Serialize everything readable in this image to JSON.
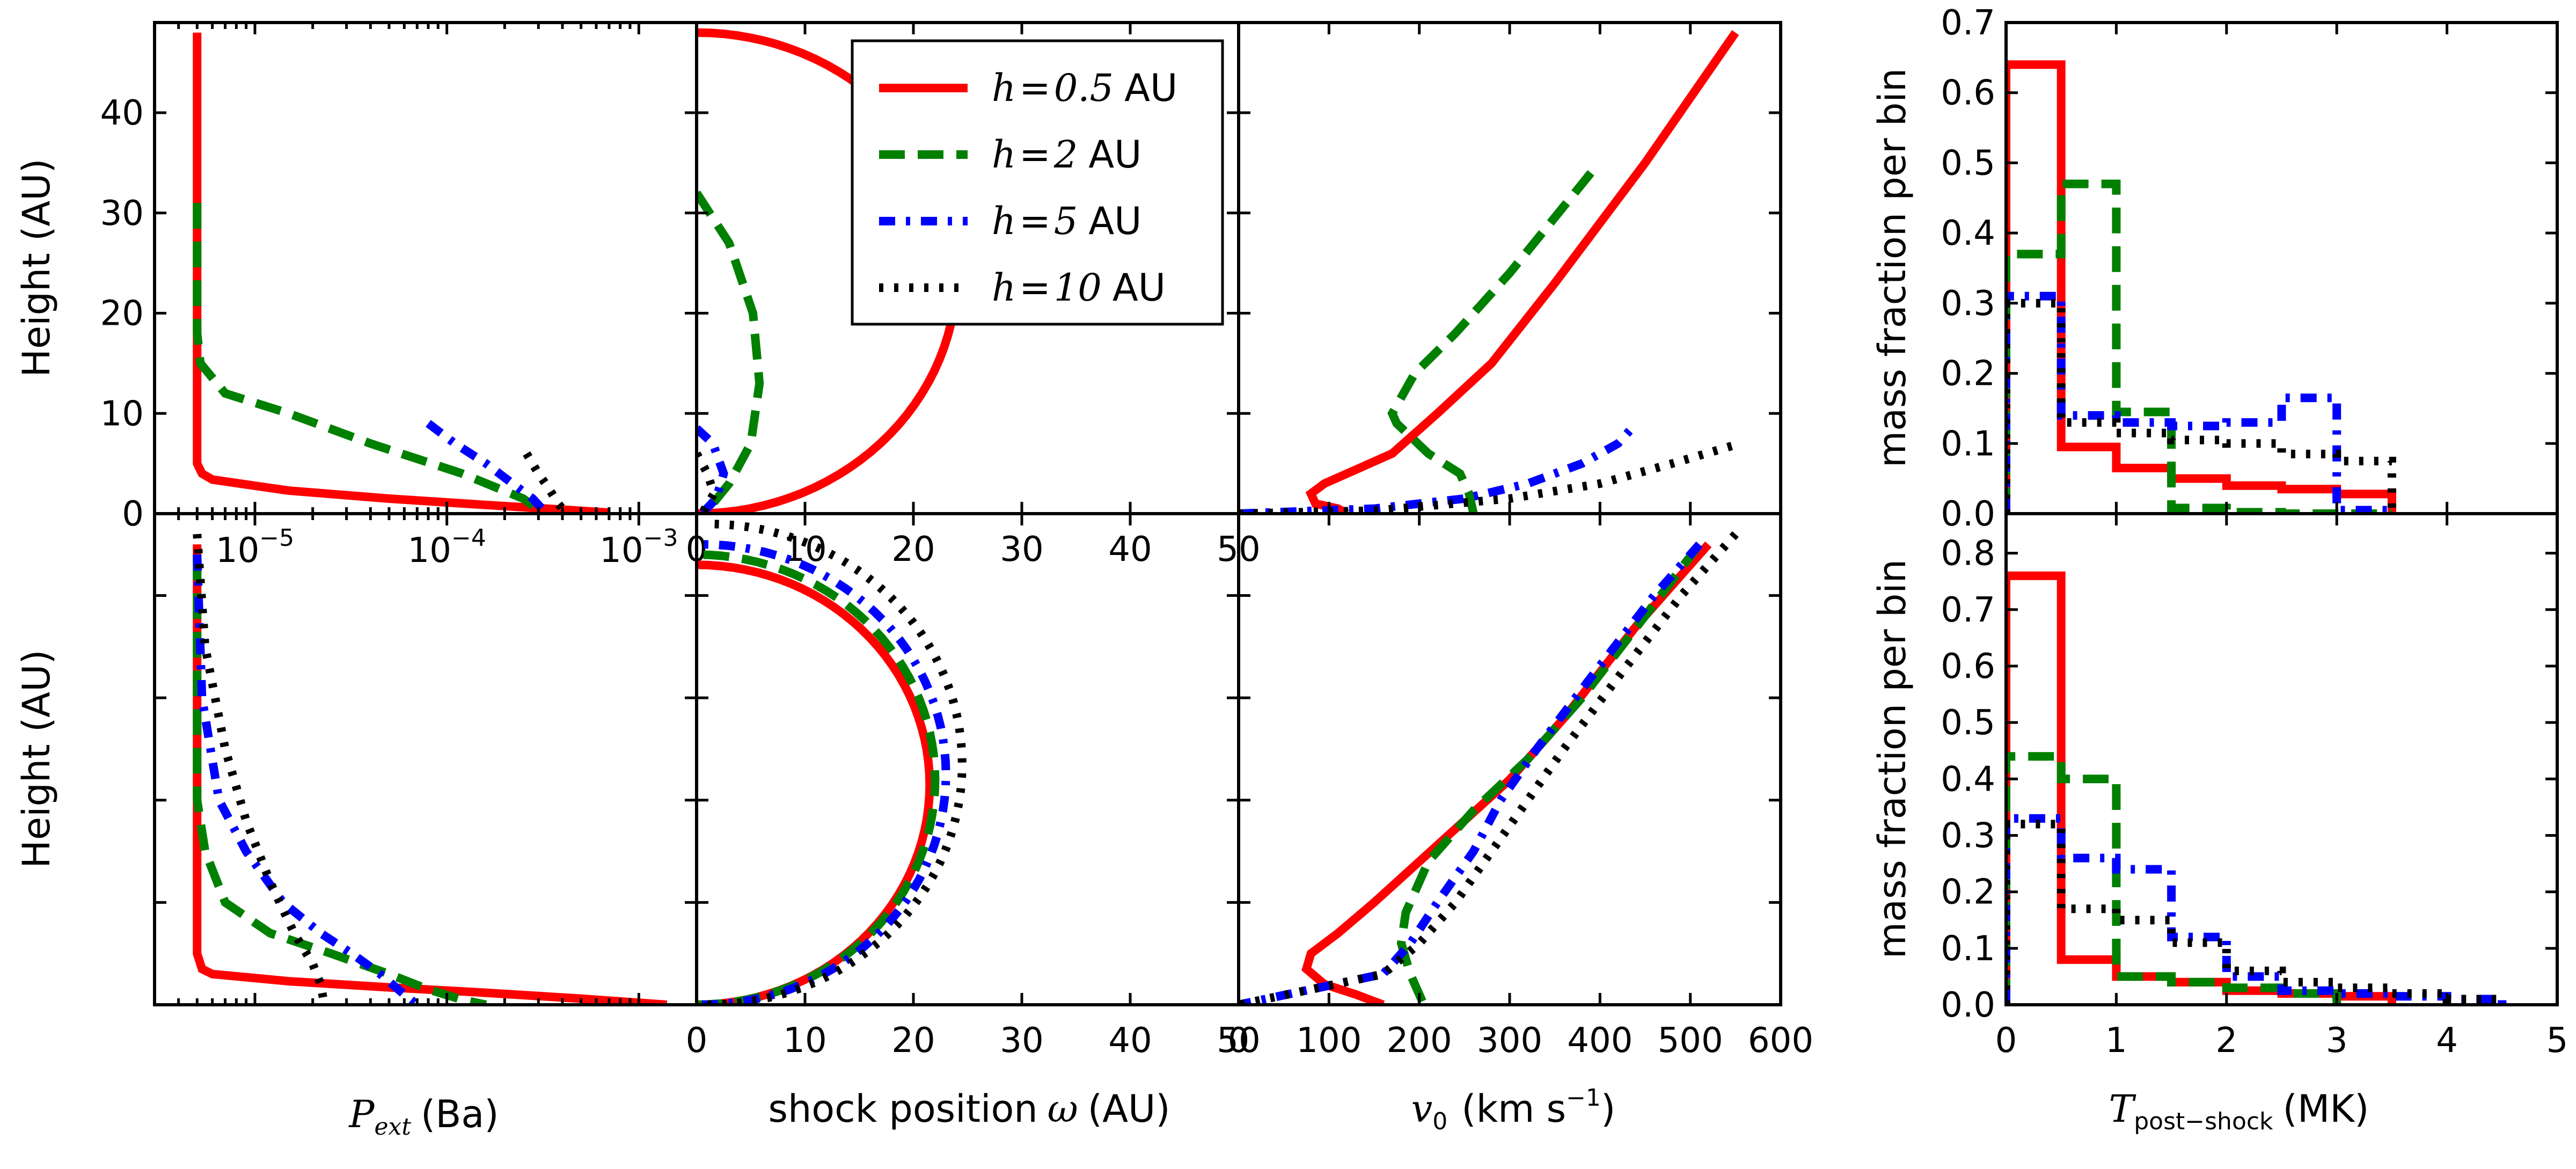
{
  "chart_data": [
    {
      "type": "line",
      "panel": "top-left",
      "xlabel_symbol": "P",
      "xlabel_sub": "ext",
      "xlabel_unit": "(Ba)",
      "ylabel": "Height (AU)",
      "xscale": "log",
      "xlim": [
        3e-06,
        0.002
      ],
      "ylim": [
        0,
        49
      ],
      "xtick_labels": [
        {
          "v": 1e-05,
          "base": "10",
          "exp": "-5"
        },
        {
          "v": 0.0001,
          "base": "10",
          "exp": "-4"
        },
        {
          "v": 0.001,
          "base": "10",
          "exp": "-3"
        }
      ],
      "ytick_labels": [
        "0",
        "10",
        "20",
        "30",
        "40"
      ],
      "yticks": [
        0,
        10,
        20,
        30,
        40
      ],
      "series": [
        {
          "name": "h=0.5 AU",
          "color": "#ff0000",
          "style": "solid",
          "x": [
            5e-06,
            5e-06,
            5e-06,
            5.3e-06,
            6e-06,
            1.5e-05,
            5e-05,
            0.00015,
            0.0004,
            0.0007
          ],
          "y": [
            48,
            10,
            5,
            4,
            3.4,
            2.3,
            1.5,
            0.9,
            0.4,
            0.1
          ]
        },
        {
          "name": "h=2 AU",
          "color": "#008000",
          "style": "dashed",
          "x": [
            5e-06,
            5e-06,
            5.2e-06,
            7e-06,
            1.5e-05,
            4e-05,
            0.00012,
            0.00025,
            0.00032
          ],
          "y": [
            31,
            18,
            15,
            12,
            10,
            7,
            4,
            1.5,
            0
          ]
        },
        {
          "name": "h=5 AU",
          "color": "#0000ff",
          "style": "dashdot",
          "x": [
            8e-05,
            0.00011,
            0.00016,
            0.00022,
            0.00028,
            0.00033
          ],
          "y": [
            9,
            7,
            5,
            3,
            1.5,
            0
          ]
        },
        {
          "name": "h=10 AU",
          "color": "#000000",
          "style": "dotted",
          "x": [
            0.00026,
            0.0003,
            0.00034,
            0.00038,
            0.00042
          ],
          "y": [
            6,
            4,
            2.5,
            1,
            0
          ]
        }
      ]
    },
    {
      "type": "line",
      "panel": "top-mid",
      "xlabel": "shock position",
      "xlabel_symbol": "ω",
      "xlabel_unit": "(AU)",
      "xlim": [
        0,
        50
      ],
      "ylim": [
        0,
        49
      ],
      "xtick_labels": [
        "0",
        "10",
        "20",
        "30",
        "40",
        "50"
      ],
      "xticks": [
        0,
        10,
        20,
        30,
        40,
        50
      ],
      "series": [
        {
          "name": "h=0.5 AU",
          "color": "#ff0000",
          "style": "solid",
          "shape": "semicircle",
          "cx": 0,
          "cy": 24,
          "r": 24
        },
        {
          "name": "h=2 AU",
          "color": "#008000",
          "style": "dashed",
          "x": [
            0,
            3,
            5.2,
            5.8,
            5,
            3,
            1.5
          ],
          "y": [
            32,
            27,
            20,
            13,
            7,
            3,
            1
          ]
        },
        {
          "name": "h=5 AU",
          "color": "#0000ff",
          "style": "dashdot",
          "x": [
            0,
            1.5,
            2.5,
            1.8,
            0.5
          ],
          "y": [
            8.5,
            7,
            4,
            1.5,
            0
          ]
        },
        {
          "name": "h=10 AU",
          "color": "#000000",
          "style": "dotted",
          "x": [
            0,
            1,
            1.6,
            0.5
          ],
          "y": [
            6,
            4,
            2,
            0
          ]
        }
      ]
    },
    {
      "type": "line",
      "panel": "top-right",
      "xlim": [
        0,
        600
      ],
      "ylim": [
        0,
        49
      ],
      "series": [
        {
          "name": "h=0.5 AU",
          "color": "#ff0000",
          "style": "solid",
          "x": [
            550,
            450,
            350,
            280,
            220,
            170,
            120,
            95,
            80,
            85,
            110,
            120
          ],
          "y": [
            48,
            35,
            23,
            15,
            10,
            6,
            4,
            3,
            2,
            1,
            0.5,
            0
          ]
        },
        {
          "name": "h=2 AU",
          "color": "#008000",
          "style": "dashed",
          "x": [
            390,
            300,
            240,
            195,
            170,
            175,
            210,
            245,
            255,
            260
          ],
          "y": [
            34,
            24,
            18,
            14,
            10,
            9,
            6,
            4,
            2,
            0
          ]
        },
        {
          "name": "h=5 AU",
          "color": "#0000ff",
          "style": "dashdot",
          "x": [
            0,
            150,
            250,
            320,
            380,
            420,
            440
          ],
          "y": [
            0,
            0.5,
            1.5,
            3,
            5,
            7,
            9
          ]
        },
        {
          "name": "h=10 AU",
          "color": "#000000",
          "style": "dotted",
          "x": [
            0,
            150,
            300,
            400,
            480,
            555
          ],
          "y": [
            0,
            0.3,
            1.5,
            3,
            5,
            7
          ]
        }
      ]
    },
    {
      "type": "line",
      "panel": "bottom-left",
      "xlabel_symbol": "P",
      "xlabel_sub": "ext",
      "xlabel_unit": "(Ba)",
      "ylabel": "Height (AU)",
      "xscale": "log",
      "xlim": [
        3e-06,
        0.002
      ],
      "ylim": [
        0,
        48
      ],
      "series": [
        {
          "name": "h=0.5 AU",
          "color": "#ff0000",
          "style": "solid",
          "x": [
            5e-06,
            5e-06,
            5.3e-06,
            6e-06,
            1.5e-05,
            5e-05,
            0.00015,
            0.0005,
            0.0014
          ],
          "y": [
            45,
            5,
            3.5,
            3,
            2.3,
            1.7,
            1.2,
            0.6,
            0
          ]
        },
        {
          "name": "h=2 AU",
          "color": "#008000",
          "style": "dashed",
          "x": [
            5e-06,
            5e-06,
            5.5e-06,
            7e-06,
            1.2e-05,
            2.5e-05,
            5e-05,
            8e-05,
            0.00012,
            0.00016
          ],
          "y": [
            44,
            20,
            15,
            10,
            7,
            5,
            3,
            1.5,
            0.5,
            0
          ]
        },
        {
          "name": "h=5 AU",
          "color": "#0000ff",
          "style": "dashdot",
          "x": [
            5e-06,
            5.3e-06,
            6.5e-06,
            9e-06,
            1.4e-05,
            2.2e-05,
            3.2e-05,
            4.5e-05,
            6e-05,
            7e-05
          ],
          "y": [
            44,
            30,
            20,
            15,
            10,
            7,
            5,
            3,
            1,
            0
          ]
        },
        {
          "name": "h=10 AU",
          "color": "#000000",
          "style": "dotted",
          "x": [
            5e-06,
            5.5e-06,
            7e-06,
            9e-06,
            1.2e-05,
            1.6e-05,
            2e-05,
            2.2e-05,
            2.3e-05
          ],
          "y": [
            46,
            35,
            25,
            18,
            12,
            7,
            4,
            2,
            0
          ]
        }
      ]
    },
    {
      "type": "line",
      "panel": "bottom-mid",
      "xlabel": "shock position",
      "xlabel_symbol": "ω",
      "xlabel_unit": "(AU)",
      "xlim": [
        0,
        50
      ],
      "ylim": [
        0,
        48
      ],
      "xtick_labels": [
        "0",
        "10",
        "20",
        "30",
        "40",
        "50"
      ],
      "xticks": [
        0,
        10,
        20,
        30,
        40,
        50
      ],
      "series": [
        {
          "name": "h=0.5 AU",
          "color": "#ff0000",
          "style": "solid",
          "shape": "semicircle",
          "cx": 0,
          "cy": 21.5,
          "r": 21.5
        },
        {
          "name": "h=2 AU",
          "color": "#008000",
          "style": "dashed",
          "shape": "semicircle",
          "cx": 0,
          "cy": 22,
          "r": 22
        },
        {
          "name": "h=5 AU",
          "color": "#0000ff",
          "style": "dashdot",
          "shape": "semicircle",
          "cx": 0.5,
          "cy": 22.5,
          "r": 22.5
        },
        {
          "name": "h=10 AU",
          "color": "#000000",
          "style": "dotted",
          "shape": "semicircle",
          "cx": 1,
          "cy": 23.5,
          "r": 23.5
        }
      ]
    },
    {
      "type": "line",
      "panel": "bottom-right",
      "xlabel_symbol": "v",
      "xlabel_sub": "0",
      "xlabel_unit": "(km s",
      "xlabel_unit_exp": "−1",
      "xlabel_unit_close": ")",
      "xlim": [
        0,
        600
      ],
      "ylim": [
        0,
        48
      ],
      "xtick_labels": [
        "100",
        "200",
        "300",
        "400",
        "500",
        "600"
      ],
      "xticks": [
        100,
        200,
        300,
        400,
        500,
        600
      ],
      "series": [
        {
          "name": "h=0.5 AU",
          "color": "#ff0000",
          "style": "solid",
          "x": [
            520,
            440,
            360,
            300,
            250,
            200,
            150,
            110,
            80,
            75,
            95,
            130,
            160
          ],
          "y": [
            45,
            37,
            28,
            22,
            18,
            14,
            10,
            7,
            5,
            3.5,
            2,
            1,
            0
          ]
        },
        {
          "name": "h=2 AU",
          "color": "#008000",
          "style": "dashed",
          "x": [
            510,
            450,
            380,
            320,
            260,
            210,
            185,
            180,
            190,
            205
          ],
          "y": [
            45,
            38,
            30,
            24,
            19,
            14,
            9,
            6,
            3,
            0
          ]
        },
        {
          "name": "h=5 AU",
          "color": "#0000ff",
          "style": "dashdot",
          "x": [
            510,
            460,
            390,
            330,
            290,
            260,
            220,
            190,
            160,
            0
          ],
          "y": [
            45,
            40,
            32,
            25,
            20,
            15,
            10,
            6,
            3,
            0
          ]
        },
        {
          "name": "h=10 AU",
          "color": "#000000",
          "style": "dotted",
          "x": [
            550,
            490,
            420,
            360,
            320,
            280,
            240,
            200,
            160,
            0
          ],
          "y": [
            46,
            40,
            32,
            25,
            20,
            15,
            10,
            6,
            3,
            0
          ]
        }
      ]
    },
    {
      "type": "line",
      "panel": "hist-top",
      "ylabel": "mass fraction per bin",
      "xlim": [
        0,
        5
      ],
      "ylim": [
        0,
        0.7
      ],
      "ytick_labels": [
        "0.0",
        "0.1",
        "0.2",
        "0.3",
        "0.4",
        "0.5",
        "0.6",
        "0.7"
      ],
      "yticks": [
        0,
        0.1,
        0.2,
        0.3,
        0.4,
        0.5,
        0.6,
        0.7
      ],
      "series": [
        {
          "name": "h=0.5 AU",
          "color": "#ff0000",
          "style": "solid",
          "edges": [
            0,
            0.5,
            1,
            1.5,
            2,
            2.5,
            3,
            3.5
          ],
          "values": [
            0.64,
            0.095,
            0.065,
            0.05,
            0.04,
            0.035,
            0.028
          ]
        },
        {
          "name": "h=2 AU",
          "color": "#008000",
          "style": "dashed",
          "edges": [
            0,
            0.5,
            1,
            1.5,
            2,
            2.5,
            3,
            3.5
          ],
          "values": [
            0.37,
            0.47,
            0.145,
            0.008,
            0.002,
            0,
            0
          ]
        },
        {
          "name": "h=5 AU",
          "color": "#0000ff",
          "style": "dashdot",
          "edges": [
            0,
            0.5,
            1,
            1.5,
            2,
            2.5,
            3,
            3.5
          ],
          "values": [
            0.31,
            0.14,
            0.13,
            0.125,
            0.13,
            0.165,
            0.005
          ]
        },
        {
          "name": "h=10 AU",
          "color": "#000000",
          "style": "dotted",
          "edges": [
            0,
            0.5,
            1,
            1.5,
            2,
            2.5,
            3,
            3.5
          ],
          "values": [
            0.3,
            0.13,
            0.115,
            0.105,
            0.1,
            0.085,
            0.075
          ]
        }
      ]
    },
    {
      "type": "line",
      "panel": "hist-bottom",
      "ylabel": "mass fraction per bin",
      "xlabel_symbol": "T",
      "xlabel_sub": "post−shock",
      "xlabel_unit": "(MK)",
      "xlim": [
        0,
        5
      ],
      "ylim": [
        0,
        0.87
      ],
      "ytick_labels": [
        "0.0",
        "0.1",
        "0.2",
        "0.3",
        "0.4",
        "0.5",
        "0.6",
        "0.7",
        "0.8"
      ],
      "yticks": [
        0,
        0.1,
        0.2,
        0.3,
        0.4,
        0.5,
        0.6,
        0.7,
        0.8
      ],
      "xtick_labels": [
        "0",
        "1",
        "2",
        "3",
        "4",
        "5"
      ],
      "xticks": [
        0,
        1,
        2,
        3,
        4,
        5
      ],
      "series": [
        {
          "name": "h=0.5 AU",
          "color": "#ff0000",
          "style": "solid",
          "edges": [
            0,
            0.5,
            1,
            1.5,
            2,
            2.5,
            3,
            3.5
          ],
          "values": [
            0.76,
            0.08,
            0.05,
            0.04,
            0.025,
            0.02,
            0.015
          ]
        },
        {
          "name": "h=2 AU",
          "color": "#008000",
          "style": "dashed",
          "edges": [
            0,
            0.5,
            1,
            1.5,
            2,
            2.5,
            3
          ],
          "values": [
            0.44,
            0.4,
            0.05,
            0.04,
            0.03,
            0.02
          ]
        },
        {
          "name": "h=5 AU",
          "color": "#0000ff",
          "style": "dashdot",
          "edges": [
            0,
            0.5,
            1,
            1.5,
            2,
            2.5,
            3,
            3.5,
            4,
            4.5
          ],
          "values": [
            0.33,
            0.26,
            0.24,
            0.12,
            0.05,
            0.025,
            0.02,
            0.015,
            0.01
          ]
        },
        {
          "name": "h=10 AU",
          "color": "#000000",
          "style": "dotted",
          "edges": [
            0,
            0.5,
            1,
            1.5,
            2,
            2.5,
            3,
            3.5,
            4,
            4.5
          ],
          "values": [
            0.32,
            0.17,
            0.15,
            0.11,
            0.06,
            0.04,
            0.03,
            0.02,
            0.01
          ]
        }
      ]
    }
  ],
  "legend": {
    "position": "top-center",
    "entries": [
      {
        "var": "h",
        "eq": "=",
        "val": "0.5",
        "unit": "AU",
        "color": "#ff0000",
        "style": "solid"
      },
      {
        "var": "h",
        "eq": "=",
        "val": "2",
        "unit": "AU",
        "color": "#008000",
        "style": "dashed"
      },
      {
        "var": "h",
        "eq": "=",
        "val": "5",
        "unit": "AU",
        "color": "#0000ff",
        "style": "dashdot"
      },
      {
        "var": "h",
        "eq": "=",
        "val": "10",
        "unit": "AU",
        "color": "#000000",
        "style": "dotted"
      }
    ]
  }
}
